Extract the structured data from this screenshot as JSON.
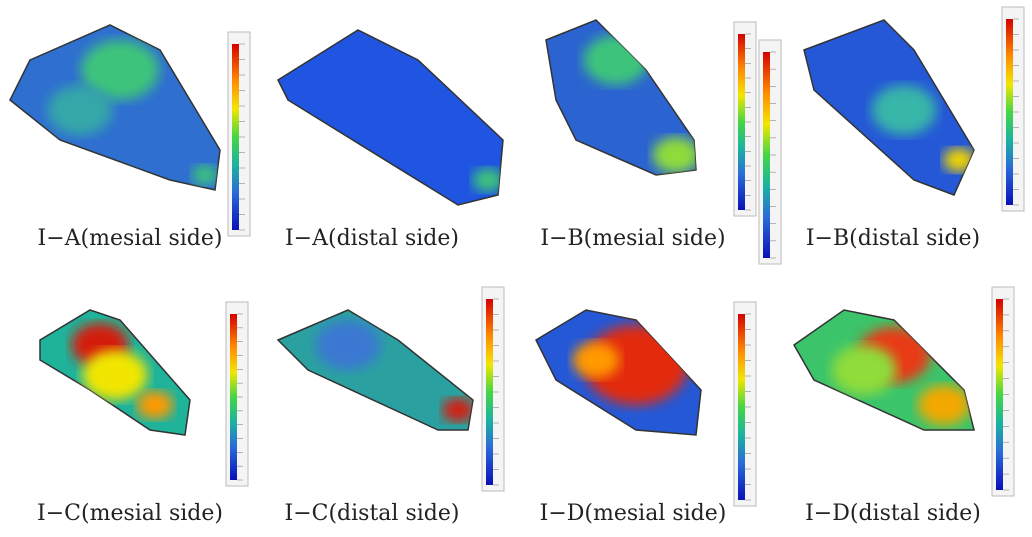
{
  "panels": [
    {
      "caption": "I−A(mesial side)"
    },
    {
      "caption": "I−A(distal side)"
    },
    {
      "caption": "I−B(mesial side)"
    },
    {
      "caption": "I−B(distal side)"
    },
    {
      "caption": "I−C(mesial side)"
    },
    {
      "caption": "I−C(distal side)"
    },
    {
      "caption": "I−D(mesial side)"
    },
    {
      "caption": "I−D(distal side)"
    }
  ]
}
